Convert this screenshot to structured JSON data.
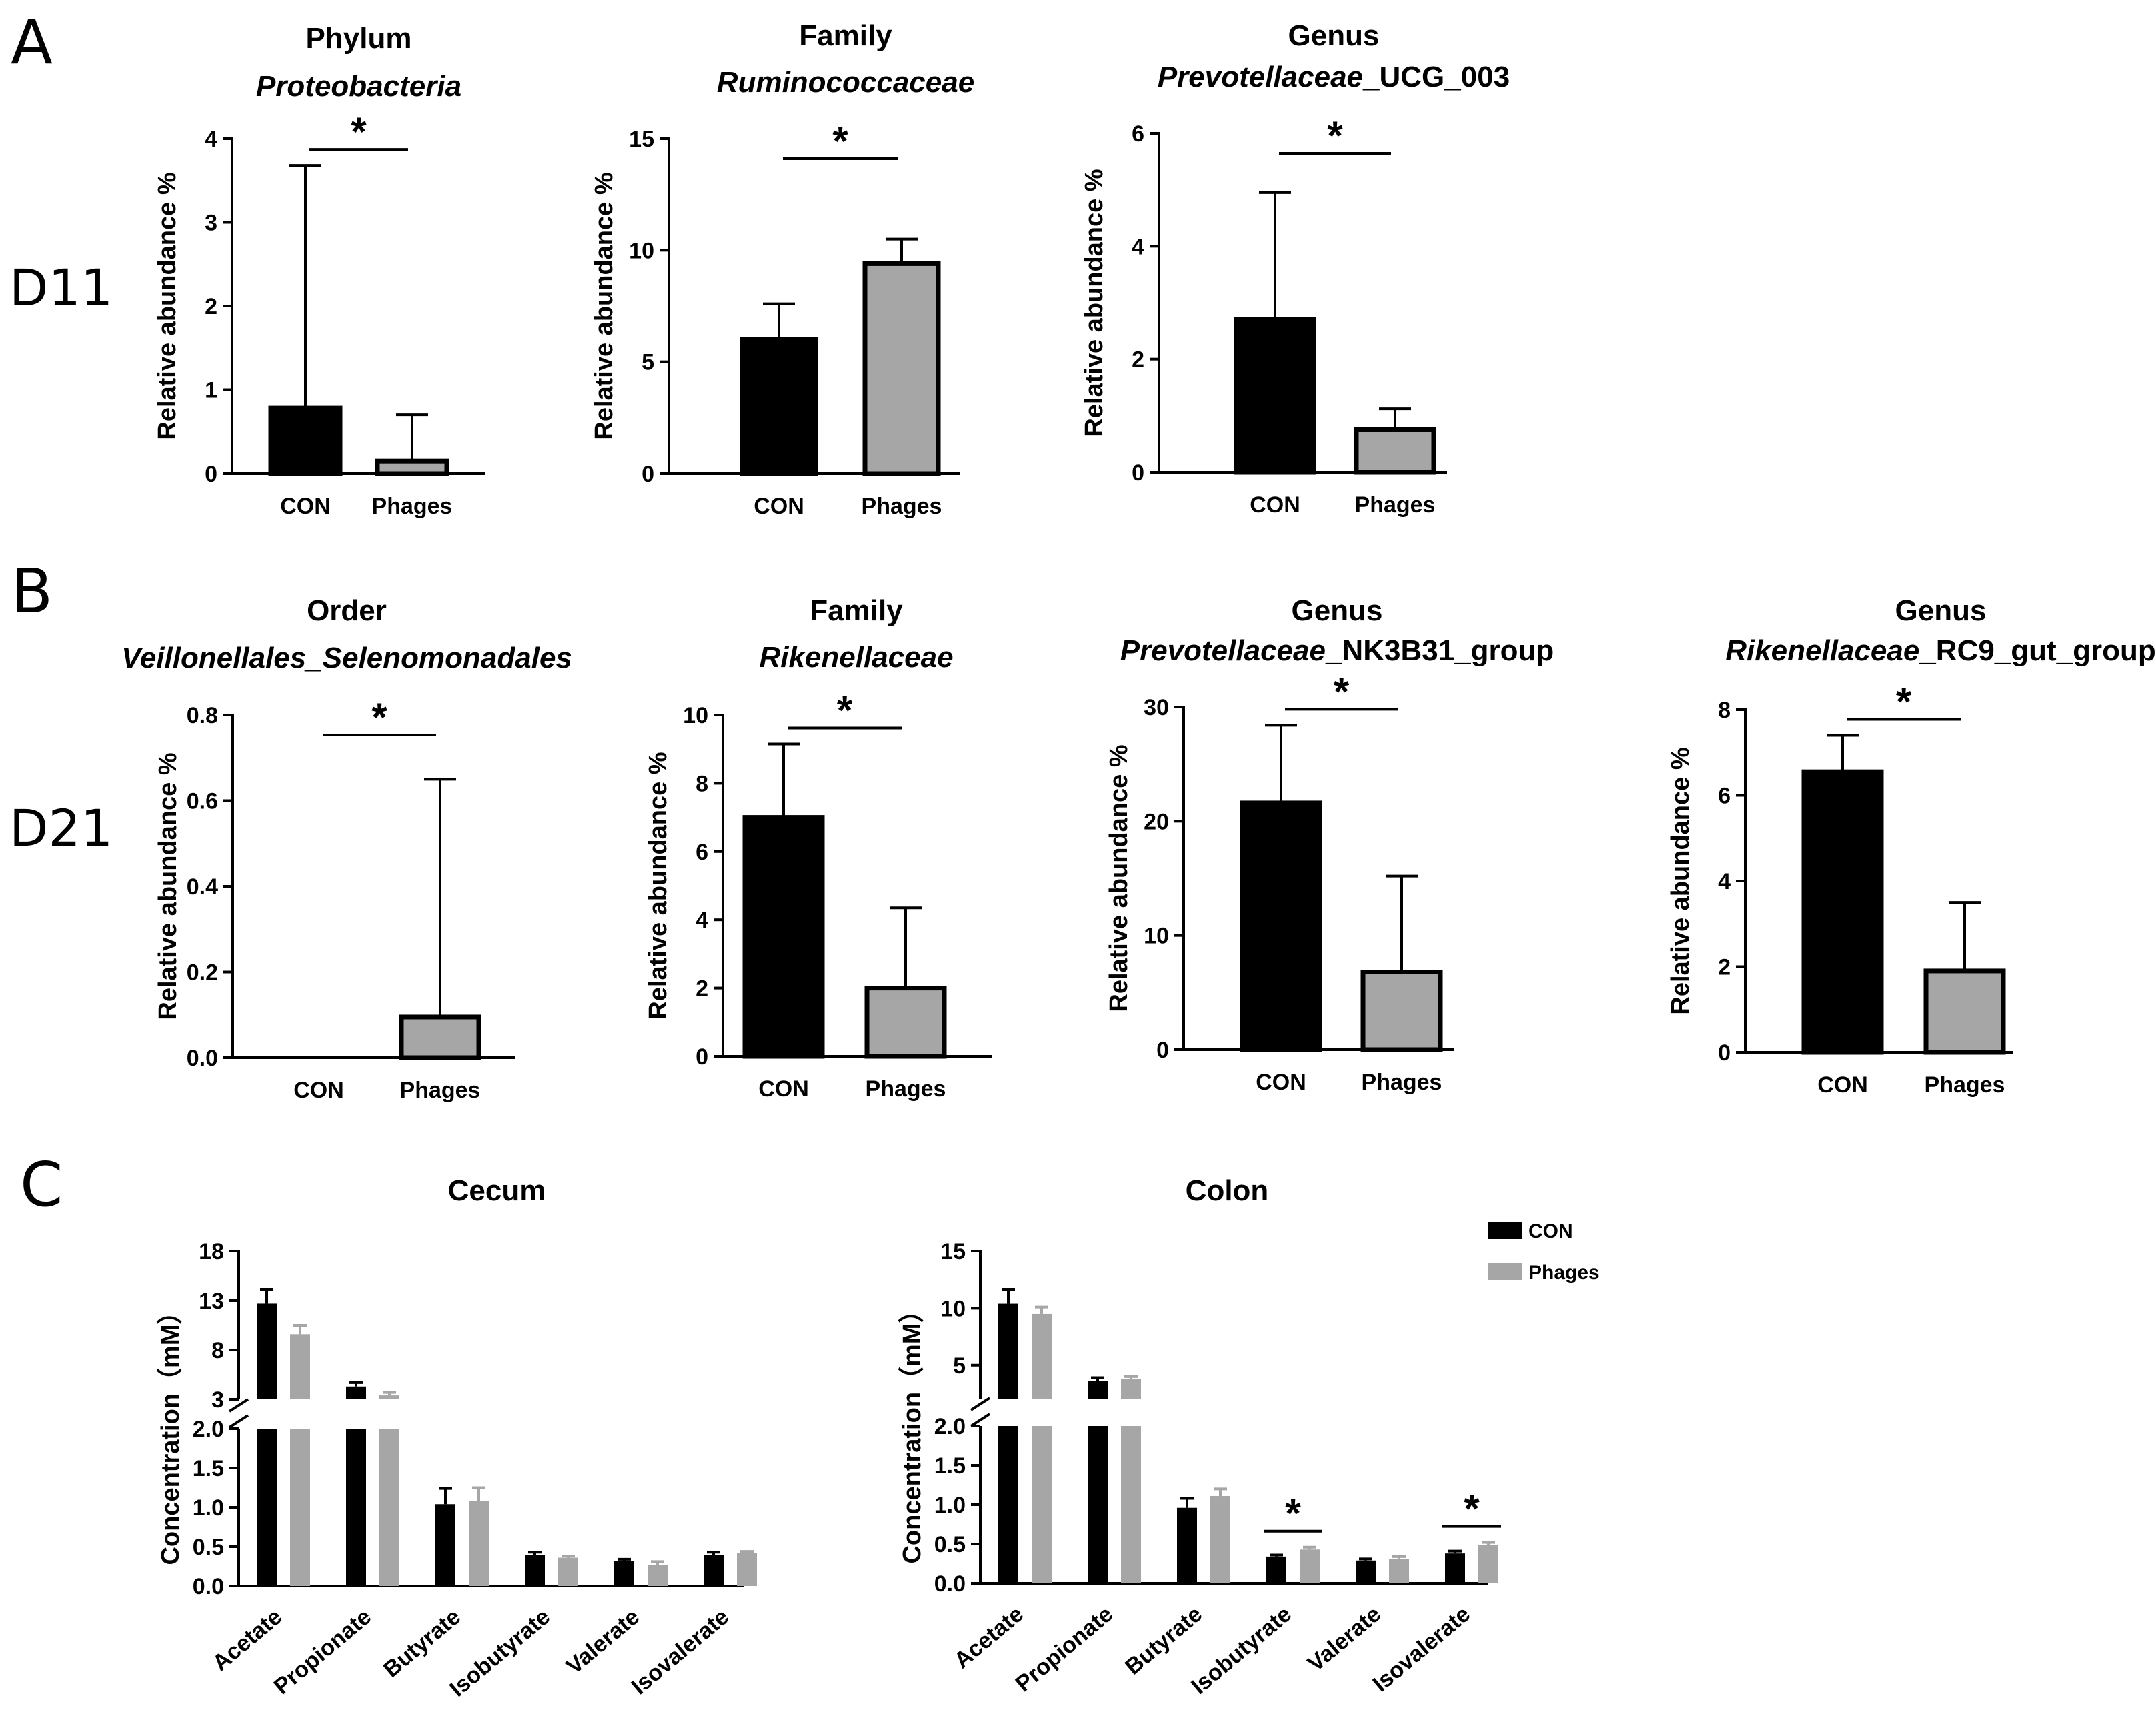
{
  "figure": {
    "panel_labels": [
      "A",
      "B",
      "C"
    ],
    "row_labels": [
      "D11",
      "D21"
    ],
    "colors": {
      "CON": "#000000",
      "Phages": "#a6a6a6",
      "Phages_border": "#000000"
    }
  },
  "chart_data": [
    {
      "id": "A1",
      "type": "bar",
      "panel": "A",
      "day": "D11",
      "title_line1": "Phylum",
      "title_line2": "Proteobacteria",
      "title_line2_suffix": "",
      "ylabel": "Relative abundance %",
      "categories": [
        "CON",
        "Phages"
      ],
      "values": [
        0.78,
        0.15
      ],
      "err_upper": [
        3.68,
        0.7
      ],
      "ylim": [
        0,
        4
      ],
      "yticks": [
        "0",
        "1",
        "2",
        "3",
        "4"
      ],
      "significance": "*"
    },
    {
      "id": "A2",
      "type": "bar",
      "panel": "A",
      "day": "D11",
      "title_line1": "Family",
      "title_line2": "Ruminococcaceae",
      "title_line2_suffix": "",
      "ylabel": "Relative abundance %",
      "categories": [
        "CON",
        "Phages"
      ],
      "values": [
        6.0,
        9.4
      ],
      "err_upper": [
        7.6,
        10.5
      ],
      "ylim": [
        0,
        15
      ],
      "yticks": [
        "0",
        "5",
        "10",
        "15"
      ],
      "significance": "*"
    },
    {
      "id": "A3",
      "type": "bar",
      "panel": "A",
      "day": "D11",
      "title_line1": "Genus",
      "title_line2": "Prevotellaceae",
      "title_line2_suffix": "_UCG_003",
      "ylabel": "Relative abundance %",
      "categories": [
        "CON",
        "Phages"
      ],
      "values": [
        2.7,
        0.75
      ],
      "err_upper": [
        4.95,
        1.12
      ],
      "ylim": [
        0,
        6
      ],
      "yticks": [
        "0",
        "2",
        "4",
        "6"
      ],
      "significance": "*"
    },
    {
      "id": "B1",
      "type": "bar",
      "panel": "B",
      "day": "D21",
      "title_line1": "Order",
      "title_line2": "Veillonellales_Selenomonadales",
      "title_line2_suffix": "",
      "ylabel": "Relative abundance %",
      "categories": [
        "CON",
        "Phages"
      ],
      "values": [
        0.0,
        0.095
      ],
      "err_upper": [
        0.0,
        0.65
      ],
      "ylim": [
        0,
        0.8
      ],
      "yticks": [
        "0.0",
        "0.2",
        "0.4",
        "0.6",
        "0.8"
      ],
      "significance": "*"
    },
    {
      "id": "B2",
      "type": "bar",
      "panel": "B",
      "day": "D21",
      "title_line1": "Family",
      "title_line2": "Rikenellaceae",
      "title_line2_suffix": "",
      "ylabel": "Relative abundance %",
      "categories": [
        "CON",
        "Phages"
      ],
      "values": [
        7.0,
        2.0
      ],
      "err_upper": [
        9.15,
        4.35
      ],
      "ylim": [
        0,
        10
      ],
      "yticks": [
        "0",
        "2",
        "4",
        "6",
        "8",
        "10"
      ],
      "significance": "*"
    },
    {
      "id": "B3",
      "type": "bar",
      "panel": "B",
      "day": "D21",
      "title_line1": "Genus",
      "title_line2": "Prevotellaceae",
      "title_line2_suffix": "_NK3B31_group",
      "ylabel": "Relative abundance %",
      "categories": [
        "CON",
        "Phages"
      ],
      "values": [
        21.6,
        6.8
      ],
      "err_upper": [
        28.4,
        15.2
      ],
      "ylim": [
        0,
        30
      ],
      "yticks": [
        "0",
        "10",
        "20",
        "30"
      ],
      "significance": "*"
    },
    {
      "id": "B4",
      "type": "bar",
      "panel": "B",
      "day": "D21",
      "title_line1": "Genus",
      "title_line2": "Rikenellaceae",
      "title_line2_suffix": "_RC9_gut_group",
      "ylabel": "Relative abundance %",
      "categories": [
        "CON",
        "Phages"
      ],
      "values": [
        6.55,
        1.9
      ],
      "err_upper": [
        7.4,
        3.5
      ],
      "ylim": [
        0,
        8
      ],
      "yticks": [
        "0",
        "2",
        "4",
        "6",
        "8"
      ],
      "significance": "*"
    },
    {
      "id": "C1",
      "type": "bar",
      "panel": "C",
      "title": "Cecum",
      "ylabel": "Concentration（mM）",
      "categories": [
        "Acetate",
        "Propionate",
        "Butyrate",
        "Isobutyrate",
        "Valerate",
        "Isovalerate"
      ],
      "series": [
        {
          "name": "CON",
          "values": [
            12.7,
            4.3,
            1.04,
            0.39,
            0.32,
            0.39
          ],
          "err": [
            1.4,
            0.4,
            0.2,
            0.04,
            0.02,
            0.04
          ]
        },
        {
          "name": "Phages",
          "values": [
            9.6,
            3.4,
            1.08,
            0.36,
            0.27,
            0.42
          ],
          "err": [
            0.9,
            0.3,
            0.17,
            0.02,
            0.04,
            0.02
          ]
        }
      ],
      "broken_axis": {
        "lower": {
          "range": [
            0,
            2.0
          ],
          "ticks": [
            "0.0",
            "0.5",
            "1.0",
            "1.5",
            "2.0"
          ]
        },
        "upper": {
          "range": [
            3,
            18
          ],
          "ticks": [
            "3",
            "8",
            "13",
            "18"
          ]
        }
      },
      "significant_categories": []
    },
    {
      "id": "C2",
      "type": "bar",
      "panel": "C",
      "title": "Colon",
      "ylabel": "Concentration（mM）",
      "categories": [
        "Acetate",
        "Propionate",
        "Butyrate",
        "Isobutyrate",
        "Valerate",
        "Isovalerate"
      ],
      "series": [
        {
          "name": "CON",
          "values": [
            10.4,
            3.6,
            0.96,
            0.34,
            0.29,
            0.38
          ],
          "err": [
            1.2,
            0.3,
            0.12,
            0.02,
            0.02,
            0.03
          ]
        },
        {
          "name": "Phages",
          "values": [
            9.5,
            3.8,
            1.11,
            0.43,
            0.31,
            0.49
          ],
          "err": [
            0.6,
            0.2,
            0.09,
            0.03,
            0.03,
            0.03
          ]
        }
      ],
      "broken_axis": {
        "lower": {
          "range": [
            0,
            2.0
          ],
          "ticks": [
            "0.0",
            "0.5",
            "1.0",
            "1.5",
            "2.0"
          ]
        },
        "upper": {
          "range": [
            2,
            15
          ],
          "ticks": [
            "5",
            "10",
            "15"
          ]
        }
      },
      "significant_categories": [
        "Isobutyrate",
        "Isovalerate"
      ],
      "legend": {
        "entries": [
          "CON",
          "Phages"
        ],
        "position": "top-right"
      }
    }
  ]
}
